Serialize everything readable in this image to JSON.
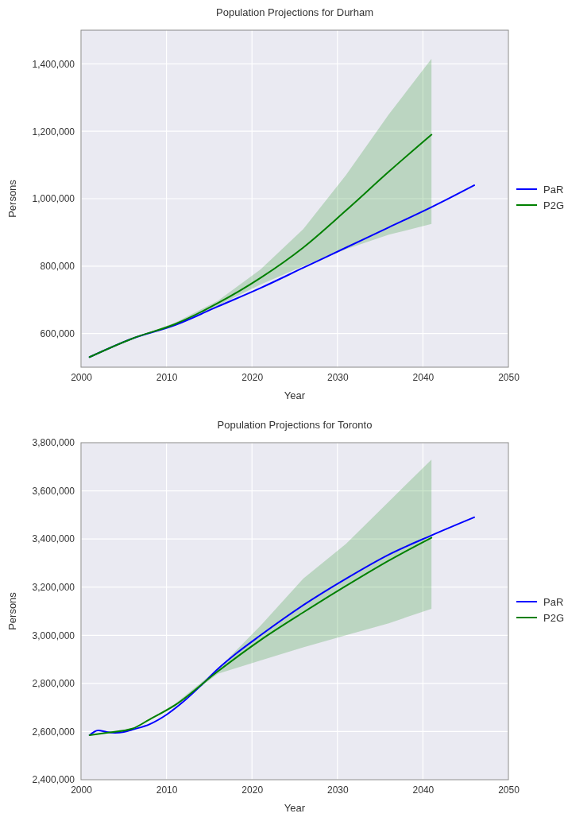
{
  "chart_data": [
    {
      "type": "line",
      "title": "Population Projections for Durham",
      "xlabel": "Year",
      "ylabel": "Persons",
      "xlim": [
        2000,
        2050
      ],
      "xticks": [
        2000,
        2010,
        2020,
        2030,
        2040,
        2050
      ],
      "ylim": [
        500000,
        1500000
      ],
      "yticks": [
        {
          "value": 600000,
          "label": "600,000"
        },
        {
          "value": 800000,
          "label": "800,000"
        },
        {
          "value": 1000000,
          "label": "1,000,000"
        },
        {
          "value": 1200000,
          "label": "1,200,000"
        },
        {
          "value": 1400000,
          "label": "1,400,000"
        }
      ],
      "grid": true,
      "legend": "right",
      "series": [
        {
          "name": "PaR",
          "color": "#0000ff",
          "x": [
            2001,
            2006,
            2011,
            2016,
            2021,
            2026,
            2031,
            2036,
            2041,
            2046
          ],
          "values": [
            530000,
            585000,
            625000,
            680000,
            735000,
            795000,
            855000,
            915000,
            975000,
            1040000
          ]
        },
        {
          "name": "P2G",
          "color": "#008000",
          "x": [
            2001,
            2006,
            2011,
            2016,
            2021,
            2026,
            2031,
            2036,
            2041
          ],
          "values": [
            530000,
            585000,
            628000,
            690000,
            765000,
            855000,
            965000,
            1080000,
            1190000
          ],
          "lower": [
            530000,
            585000,
            624000,
            683000,
            745000,
            800000,
            850000,
            893000,
            925000
          ],
          "upper": [
            530000,
            585000,
            632000,
            697000,
            790000,
            910000,
            1070000,
            1250000,
            1415000
          ]
        }
      ]
    },
    {
      "type": "line",
      "title": "Population Projections for Toronto",
      "xlabel": "Year",
      "ylabel": "Persons",
      "xlim": [
        2000,
        2050
      ],
      "xticks": [
        2000,
        2010,
        2020,
        2030,
        2040,
        2050
      ],
      "ylim": [
        2400000,
        3800000
      ],
      "yticks": [
        {
          "value": 2400000,
          "label": "2,400,000"
        },
        {
          "value": 2600000,
          "label": "2,600,000"
        },
        {
          "value": 2800000,
          "label": "2,800,000"
        },
        {
          "value": 3000000,
          "label": "3,000,000"
        },
        {
          "value": 3200000,
          "label": "3,200,000"
        },
        {
          "value": 3400000,
          "label": "3,400,000"
        },
        {
          "value": 3600000,
          "label": "3,600,000"
        },
        {
          "value": 3800000,
          "label": "3,800,000"
        }
      ],
      "grid": true,
      "legend": "right",
      "series": [
        {
          "name": "PaR",
          "color": "#0000ff",
          "x": [
            2001,
            2002,
            2003,
            2004,
            2005,
            2006,
            2008,
            2010,
            2012,
            2014,
            2016,
            2018,
            2021,
            2026,
            2031,
            2036,
            2041,
            2046
          ],
          "values": [
            2585000,
            2605000,
            2598000,
            2595000,
            2598000,
            2608000,
            2630000,
            2670000,
            2725000,
            2790000,
            2860000,
            2920000,
            3000000,
            3125000,
            3235000,
            3335000,
            3415000,
            3490000
          ]
        },
        {
          "name": "P2G",
          "color": "#008000",
          "x": [
            2001,
            2003,
            2006,
            2008,
            2011,
            2016,
            2021,
            2026,
            2031,
            2036,
            2041
          ],
          "values": [
            2585000,
            2595000,
            2612000,
            2650000,
            2710000,
            2850000,
            2980000,
            3095000,
            3205000,
            3310000,
            3405000
          ],
          "lower": [
            2585000,
            2595000,
            2612000,
            2648000,
            2705000,
            2840000,
            2895000,
            2950000,
            3000000,
            3050000,
            3110000
          ],
          "upper": [
            2585000,
            2595000,
            2612000,
            2652000,
            2715000,
            2860000,
            3040000,
            3235000,
            3380000,
            3555000,
            3730000
          ]
        }
      ]
    }
  ]
}
